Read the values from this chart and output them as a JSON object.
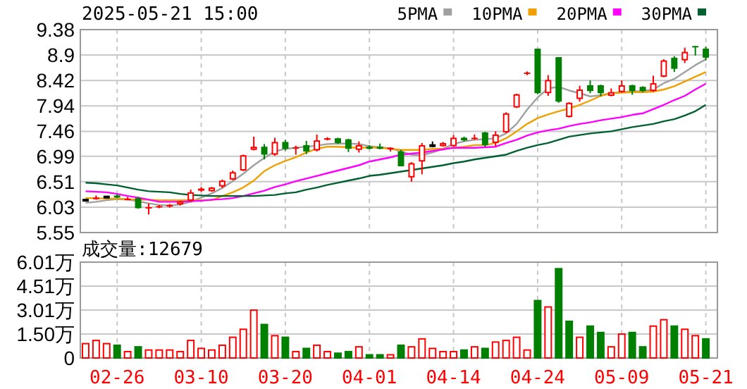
{
  "chart_data": [
    {
      "type": "candlestick",
      "title": "2025-05-21 15:00",
      "categories": [
        null,
        null,
        null,
        null,
        null,
        null,
        null,
        null,
        null,
        null,
        null,
        null,
        null,
        null,
        null,
        null,
        null,
        null,
        null,
        null,
        null,
        null,
        null,
        null,
        null,
        null,
        null,
        null,
        null,
        null,
        null,
        null,
        null,
        null,
        null,
        null,
        null,
        null,
        null,
        null,
        null,
        null,
        null,
        null,
        null,
        null,
        null,
        null,
        null,
        null,
        null,
        null,
        null,
        null,
        null,
        null,
        null,
        null,
        null,
        null
      ],
      "ohlc": [
        [
          6.16,
          6.18,
          6.14,
          6.16
        ],
        [
          6.18,
          6.25,
          6.17,
          6.21
        ],
        [
          6.22,
          6.23,
          6.2,
          6.22
        ],
        [
          6.25,
          6.27,
          6.2,
          6.21
        ],
        [
          6.18,
          6.22,
          6.16,
          6.19
        ],
        [
          6.2,
          6.22,
          6.0,
          6.01
        ],
        [
          6.02,
          6.1,
          5.89,
          6.03
        ],
        [
          6.04,
          6.07,
          6.01,
          6.05
        ],
        [
          6.04,
          6.09,
          6.02,
          6.07
        ],
        [
          6.08,
          6.15,
          6.06,
          6.14
        ],
        [
          6.15,
          6.36,
          6.13,
          6.31
        ],
        [
          6.34,
          6.41,
          6.32,
          6.38
        ],
        [
          6.33,
          6.41,
          6.32,
          6.4
        ],
        [
          6.42,
          6.55,
          6.39,
          6.53
        ],
        [
          6.55,
          6.72,
          6.54,
          6.69
        ],
        [
          6.72,
          7.02,
          6.71,
          7.01
        ],
        [
          7.11,
          7.36,
          7.1,
          7.17
        ],
        [
          7.17,
          7.22,
          6.93,
          7.02
        ],
        [
          7.02,
          7.34,
          7.0,
          7.26
        ],
        [
          7.26,
          7.3,
          7.1,
          7.13
        ],
        [
          7.14,
          7.19,
          7.02,
          7.16
        ],
        [
          7.2,
          7.28,
          7.03,
          7.08
        ],
        [
          7.1,
          7.4,
          7.08,
          7.29
        ],
        [
          7.3,
          7.35,
          7.29,
          7.33
        ],
        [
          7.33,
          7.34,
          7.22,
          7.24
        ],
        [
          7.31,
          7.32,
          7.07,
          7.13
        ],
        [
          7.11,
          7.27,
          7.06,
          7.2
        ],
        [
          7.17,
          7.2,
          7.12,
          7.13
        ],
        [
          7.17,
          7.23,
          7.12,
          7.13
        ],
        [
          7.12,
          7.16,
          7.08,
          7.15
        ],
        [
          7.08,
          7.11,
          6.8,
          6.8
        ],
        [
          6.59,
          6.88,
          6.51,
          6.86
        ],
        [
          6.89,
          7.24,
          6.65,
          7.2
        ],
        [
          7.19,
          7.27,
          7.16,
          7.19
        ],
        [
          7.18,
          7.26,
          7.17,
          7.24
        ],
        [
          7.18,
          7.39,
          7.17,
          7.34
        ],
        [
          7.34,
          7.36,
          7.27,
          7.29
        ],
        [
          7.33,
          7.4,
          7.3,
          7.34
        ],
        [
          7.44,
          7.45,
          7.17,
          7.2
        ],
        [
          7.24,
          7.46,
          7.18,
          7.4
        ],
        [
          7.44,
          7.82,
          7.43,
          7.8
        ],
        [
          7.91,
          8.17,
          7.9,
          8.16
        ],
        [
          8.55,
          8.59,
          8.52,
          8.57
        ],
        [
          9.02,
          9.02,
          8.16,
          8.18
        ],
        [
          8.18,
          8.52,
          8.13,
          8.43
        ],
        [
          8.86,
          8.86,
          8.0,
          8.02
        ],
        [
          7.73,
          8.01,
          7.72,
          8.0
        ],
        [
          8.07,
          8.32,
          8.02,
          8.25
        ],
        [
          8.33,
          8.42,
          8.18,
          8.22
        ],
        [
          8.33,
          8.34,
          8.12,
          8.18
        ],
        [
          8.13,
          8.27,
          8.12,
          8.2
        ],
        [
          8.2,
          8.42,
          8.19,
          8.33
        ],
        [
          8.33,
          8.34,
          8.15,
          8.22
        ],
        [
          8.3,
          8.31,
          8.2,
          8.22
        ],
        [
          8.22,
          8.51,
          8.21,
          8.37
        ],
        [
          8.49,
          8.82,
          8.48,
          8.8
        ],
        [
          8.85,
          8.88,
          8.58,
          8.64
        ],
        [
          8.8,
          9.04,
          8.75,
          8.96
        ],
        [
          9.07,
          9.07,
          8.89,
          9.05
        ],
        [
          9.02,
          9.06,
          8.8,
          8.85
        ]
      ],
      "series": [
        {
          "name": "5PMA",
          "type": "line",
          "color": "#a0a0a0",
          "values": [
            6.11,
            6.13,
            6.16,
            6.18,
            6.17,
            6.14,
            6.1,
            6.07,
            6.06,
            6.08,
            6.13,
            6.21,
            6.29,
            6.39,
            6.52,
            6.66,
            6.82,
            6.96,
            7.08,
            7.13,
            7.15,
            7.17,
            7.19,
            7.22,
            7.23,
            7.23,
            7.22,
            7.18,
            7.16,
            7.14,
            7.08,
            7.02,
            7.01,
            7.06,
            7.13,
            7.22,
            7.27,
            7.3,
            7.31,
            7.33,
            7.42,
            7.6,
            7.87,
            8.1,
            8.27,
            8.3,
            8.23,
            8.18,
            8.12,
            8.14,
            8.18,
            8.2,
            8.21,
            8.22,
            8.25,
            8.37,
            8.45,
            8.58,
            8.71,
            8.82
          ]
        },
        {
          "name": "10PMA",
          "type": "line",
          "color": "#f0a000",
          "values": [
            6.2,
            6.2,
            6.19,
            6.19,
            6.18,
            6.17,
            6.17,
            6.16,
            6.16,
            6.16,
            6.16,
            6.16,
            6.16,
            6.24,
            6.31,
            6.4,
            6.53,
            6.71,
            6.82,
            6.9,
            6.97,
            7.06,
            7.13,
            7.17,
            7.17,
            7.16,
            7.15,
            7.16,
            7.15,
            7.13,
            7.11,
            7.11,
            7.11,
            7.13,
            7.13,
            7.15,
            7.17,
            7.2,
            7.2,
            7.24,
            7.33,
            7.46,
            7.6,
            7.71,
            7.78,
            7.84,
            7.89,
            7.96,
            8.04,
            8.13,
            8.18,
            8.19,
            8.2,
            8.2,
            8.21,
            8.25,
            8.31,
            8.4,
            8.49,
            8.58
          ]
        },
        {
          "name": "20PMA",
          "type": "line",
          "color": "#ff00ff",
          "values": [
            6.33,
            6.32,
            6.31,
            6.28,
            6.24,
            6.21,
            6.17,
            6.13,
            6.13,
            6.13,
            6.14,
            6.15,
            6.17,
            6.18,
            6.2,
            6.24,
            6.29,
            6.34,
            6.41,
            6.46,
            6.52,
            6.57,
            6.62,
            6.67,
            6.72,
            6.77,
            6.82,
            6.89,
            6.93,
            6.97,
            7.02,
            7.04,
            7.06,
            7.09,
            7.12,
            7.15,
            7.15,
            7.15,
            7.16,
            7.17,
            7.24,
            7.3,
            7.38,
            7.44,
            7.48,
            7.51,
            7.56,
            7.6,
            7.63,
            7.67,
            7.7,
            7.73,
            7.77,
            7.8,
            7.88,
            7.96,
            8.05,
            8.13,
            8.25,
            8.36
          ]
        },
        {
          "name": "30PMA",
          "type": "line",
          "color": "#006030",
          "values": [
            6.49,
            6.48,
            6.46,
            6.44,
            6.4,
            6.36,
            6.33,
            6.32,
            6.31,
            6.28,
            6.26,
            6.25,
            6.24,
            6.24,
            6.24,
            6.24,
            6.24,
            6.25,
            6.26,
            6.29,
            6.31,
            6.36,
            6.4,
            6.45,
            6.49,
            6.53,
            6.57,
            6.62,
            6.64,
            6.67,
            6.7,
            6.73,
            6.76,
            6.79,
            6.82,
            6.86,
            6.89,
            6.93,
            6.96,
            6.99,
            7.02,
            7.09,
            7.15,
            7.2,
            7.24,
            7.3,
            7.36,
            7.39,
            7.42,
            7.44,
            7.46,
            7.5,
            7.54,
            7.57,
            7.6,
            7.65,
            7.69,
            7.76,
            7.84,
            7.96
          ]
        }
      ],
      "ylim": [
        5.55,
        9.38
      ],
      "yticks": [
        9.38,
        8.9,
        8.42,
        7.94,
        7.46,
        6.99,
        6.51,
        6.03,
        5.55
      ],
      "grid": true,
      "legend": "top right",
      "tick_labels": "y"
    },
    {
      "type": "bar",
      "annotations": [
        "成交量:12679"
      ],
      "categories": [
        null,
        null,
        null,
        "02-26",
        null,
        null,
        null,
        null,
        null,
        null,
        null,
        "03-10",
        null,
        null,
        null,
        null,
        null,
        null,
        null,
        "03-20",
        null,
        null,
        null,
        null,
        null,
        null,
        null,
        "04-01",
        null,
        null,
        null,
        null,
        null,
        null,
        null,
        "04-14",
        null,
        null,
        null,
        null,
        null,
        null,
        null,
        "04-24",
        null,
        null,
        null,
        null,
        null,
        null,
        null,
        "05-09",
        null,
        null,
        null,
        null,
        null,
        null,
        null,
        "05-21"
      ],
      "values": [
        0.9,
        1.1,
        0.9,
        0.8,
        0.4,
        0.7,
        0.5,
        0.5,
        0.5,
        0.4,
        1.1,
        0.6,
        0.5,
        0.8,
        1.3,
        1.8,
        3.0,
        2.1,
        1.4,
        1.3,
        0.4,
        0.6,
        0.8,
        0.4,
        0.3,
        0.4,
        0.7,
        0.2,
        0.2,
        0.2,
        0.8,
        0.7,
        1.2,
        0.6,
        0.4,
        0.4,
        0.5,
        0.7,
        0.6,
        1.0,
        1.1,
        1.3,
        0.5,
        3.6,
        3.2,
        5.6,
        2.3,
        1.3,
        2.0,
        1.6,
        0.7,
        1.5,
        1.6,
        0.7,
        2.0,
        2.4,
        2.0,
        1.8,
        1.4,
        1.2
      ],
      "colors": [
        "#ff0000",
        "#ff0000",
        "#ff0000",
        "#008000",
        "#ff0000",
        "#008000",
        "#ff0000",
        "#ff0000",
        "#ff0000",
        "#ff0000",
        "#ff0000",
        "#ff0000",
        "#ff0000",
        "#ff0000",
        "#ff0000",
        "#ff0000",
        "#ff0000",
        "#008000",
        "#ff0000",
        "#008000",
        "#ff0000",
        "#008000",
        "#ff0000",
        "#ff0000",
        "#008000",
        "#008000",
        "#ff0000",
        "#008000",
        "#008000",
        "#ff0000",
        "#008000",
        "#ff0000",
        "#ff0000",
        "#ff0000",
        "#ff0000",
        "#ff0000",
        "#008000",
        "#ff0000",
        "#008000",
        "#ff0000",
        "#ff0000",
        "#ff0000",
        "#ff0000",
        "#008000",
        "#ff0000",
        "#008000",
        "#008000",
        "#ff0000",
        "#008000",
        "#008000",
        "#ff0000",
        "#ff0000",
        "#008000",
        "#008000",
        "#ff0000",
        "#ff0000",
        "#008000",
        "#ff0000",
        "#ff0000",
        "#008000"
      ],
      "ylim": [
        0,
        6.01
      ],
      "yticks": [
        {
          "value": 6.01,
          "label": "6.01万"
        },
        {
          "value": 4.51,
          "label": "4.51万"
        },
        {
          "value": 3.01,
          "label": "3.01万"
        },
        {
          "value": 1.5,
          "label": "1.50万"
        },
        0
      ],
      "grid": true
    }
  ]
}
